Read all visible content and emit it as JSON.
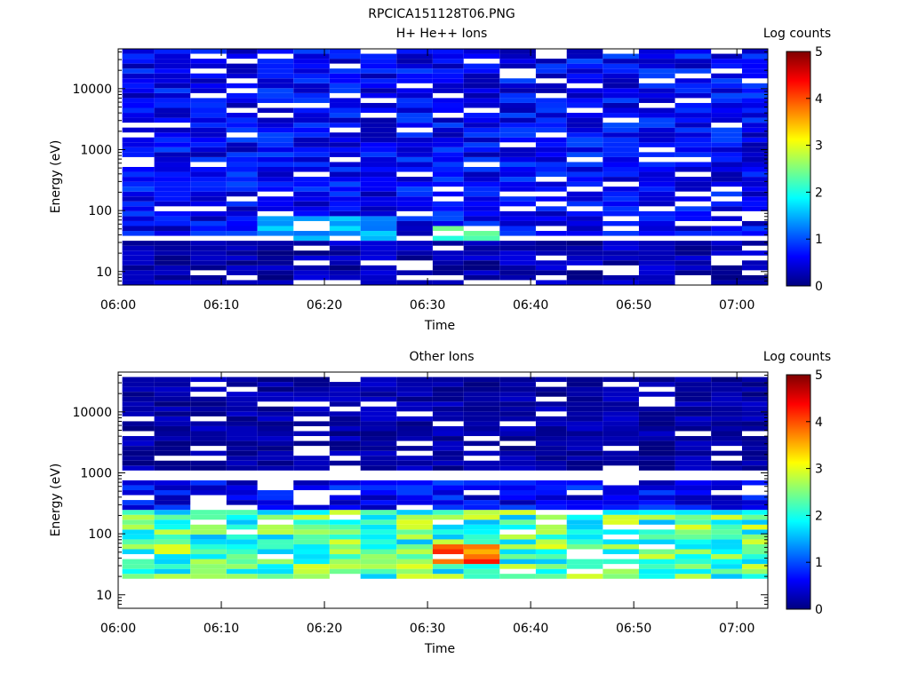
{
  "figure": {
    "title": "RPCICA151128T06.PNG"
  },
  "colorscale": {
    "stops": [
      "#00007f",
      "#0000ff",
      "#007fff",
      "#00ffff",
      "#7fff7f",
      "#ffff00",
      "#ff7f00",
      "#ff0000",
      "#7f0000"
    ],
    "range": [
      0,
      5
    ]
  },
  "chart_data": [
    {
      "type": "heatmap",
      "title": "H+ He++ Ions",
      "xlabel": "Time",
      "ylabel": "Energy (eV)",
      "xlim": [
        "06:00",
        "07:03"
      ],
      "ylim": [
        6,
        45000
      ],
      "yscale": "log",
      "xticks": [
        "06:00",
        "06:10",
        "06:20",
        "06:30",
        "06:40",
        "06:50",
        "07:00"
      ],
      "yticks": [
        "10",
        "100",
        "1000",
        "10000"
      ],
      "colorbar": {
        "label": "Log counts",
        "range": [
          0,
          5
        ],
        "ticks": [
          "0",
          "1",
          "2",
          "3",
          "4",
          "5"
        ]
      },
      "time_bins": [
        "06:02",
        "06:05",
        "06:09",
        "06:12",
        "06:15",
        "06:19",
        "06:22",
        "06:25",
        "06:29",
        "06:32",
        "06:35",
        "06:39",
        "06:42",
        "06:45",
        "06:49",
        "06:52",
        "06:56",
        "06:59",
        "07:02"
      ],
      "features": [
        {
          "energy_range_eV": [
            40,
            45000
          ],
          "time_range": [
            "06:02",
            "07:03"
          ],
          "log_counts": [
            0.2,
            1.0
          ]
        },
        {
          "energy_range_eV": [
            35,
            80
          ],
          "time_range": [
            "06:15",
            "06:27"
          ],
          "log_counts": [
            1.2,
            1.8
          ]
        },
        {
          "energy_range_eV": [
            35,
            60
          ],
          "time_range": [
            "06:31",
            "06:37"
          ],
          "log_counts": [
            2.0,
            2.5
          ]
        },
        {
          "energy_range_eV": [
            6,
            35
          ],
          "time_range": [
            "06:02",
            "07:03"
          ],
          "log_counts": [
            0.0,
            0.5
          ]
        }
      ]
    },
    {
      "type": "heatmap",
      "title": "Other Ions",
      "xlabel": "Time",
      "ylabel": "Energy (eV)",
      "xlim": [
        "06:00",
        "07:03"
      ],
      "ylim": [
        6,
        45000
      ],
      "yscale": "log",
      "xticks": [
        "06:00",
        "06:10",
        "06:20",
        "06:30",
        "06:40",
        "06:50",
        "07:00"
      ],
      "yticks": [
        "10",
        "100",
        "1000",
        "10000"
      ],
      "colorbar": {
        "label": "Log counts",
        "range": [
          0,
          5
        ],
        "ticks": [
          "0",
          "1",
          "2",
          "3",
          "4",
          "5"
        ]
      },
      "time_bins": [
        "06:02",
        "06:05",
        "06:09",
        "06:12",
        "06:15",
        "06:19",
        "06:22",
        "06:25",
        "06:29",
        "06:32",
        "06:35",
        "06:39",
        "06:42",
        "06:45",
        "06:49",
        "06:52",
        "06:56",
        "06:59",
        "07:02"
      ],
      "features": [
        {
          "energy_range_eV": [
            20,
            250
          ],
          "time_range": [
            "06:02",
            "07:03"
          ],
          "log_counts": [
            1.5,
            3.0
          ]
        },
        {
          "energy_range_eV": [
            30,
            70
          ],
          "time_range": [
            "06:31",
            "06:37"
          ],
          "log_counts": [
            3.5,
            4.3
          ]
        },
        {
          "energy_range_eV": [
            250,
            800
          ],
          "time_range": [
            "06:02",
            "07:03"
          ],
          "log_counts": [
            0.2,
            1.0
          ]
        },
        {
          "energy_range_eV": [
            1000,
            35000
          ],
          "time_range": [
            "06:02",
            "07:03"
          ],
          "log_counts": [
            0.0,
            0.4
          ]
        }
      ]
    }
  ]
}
